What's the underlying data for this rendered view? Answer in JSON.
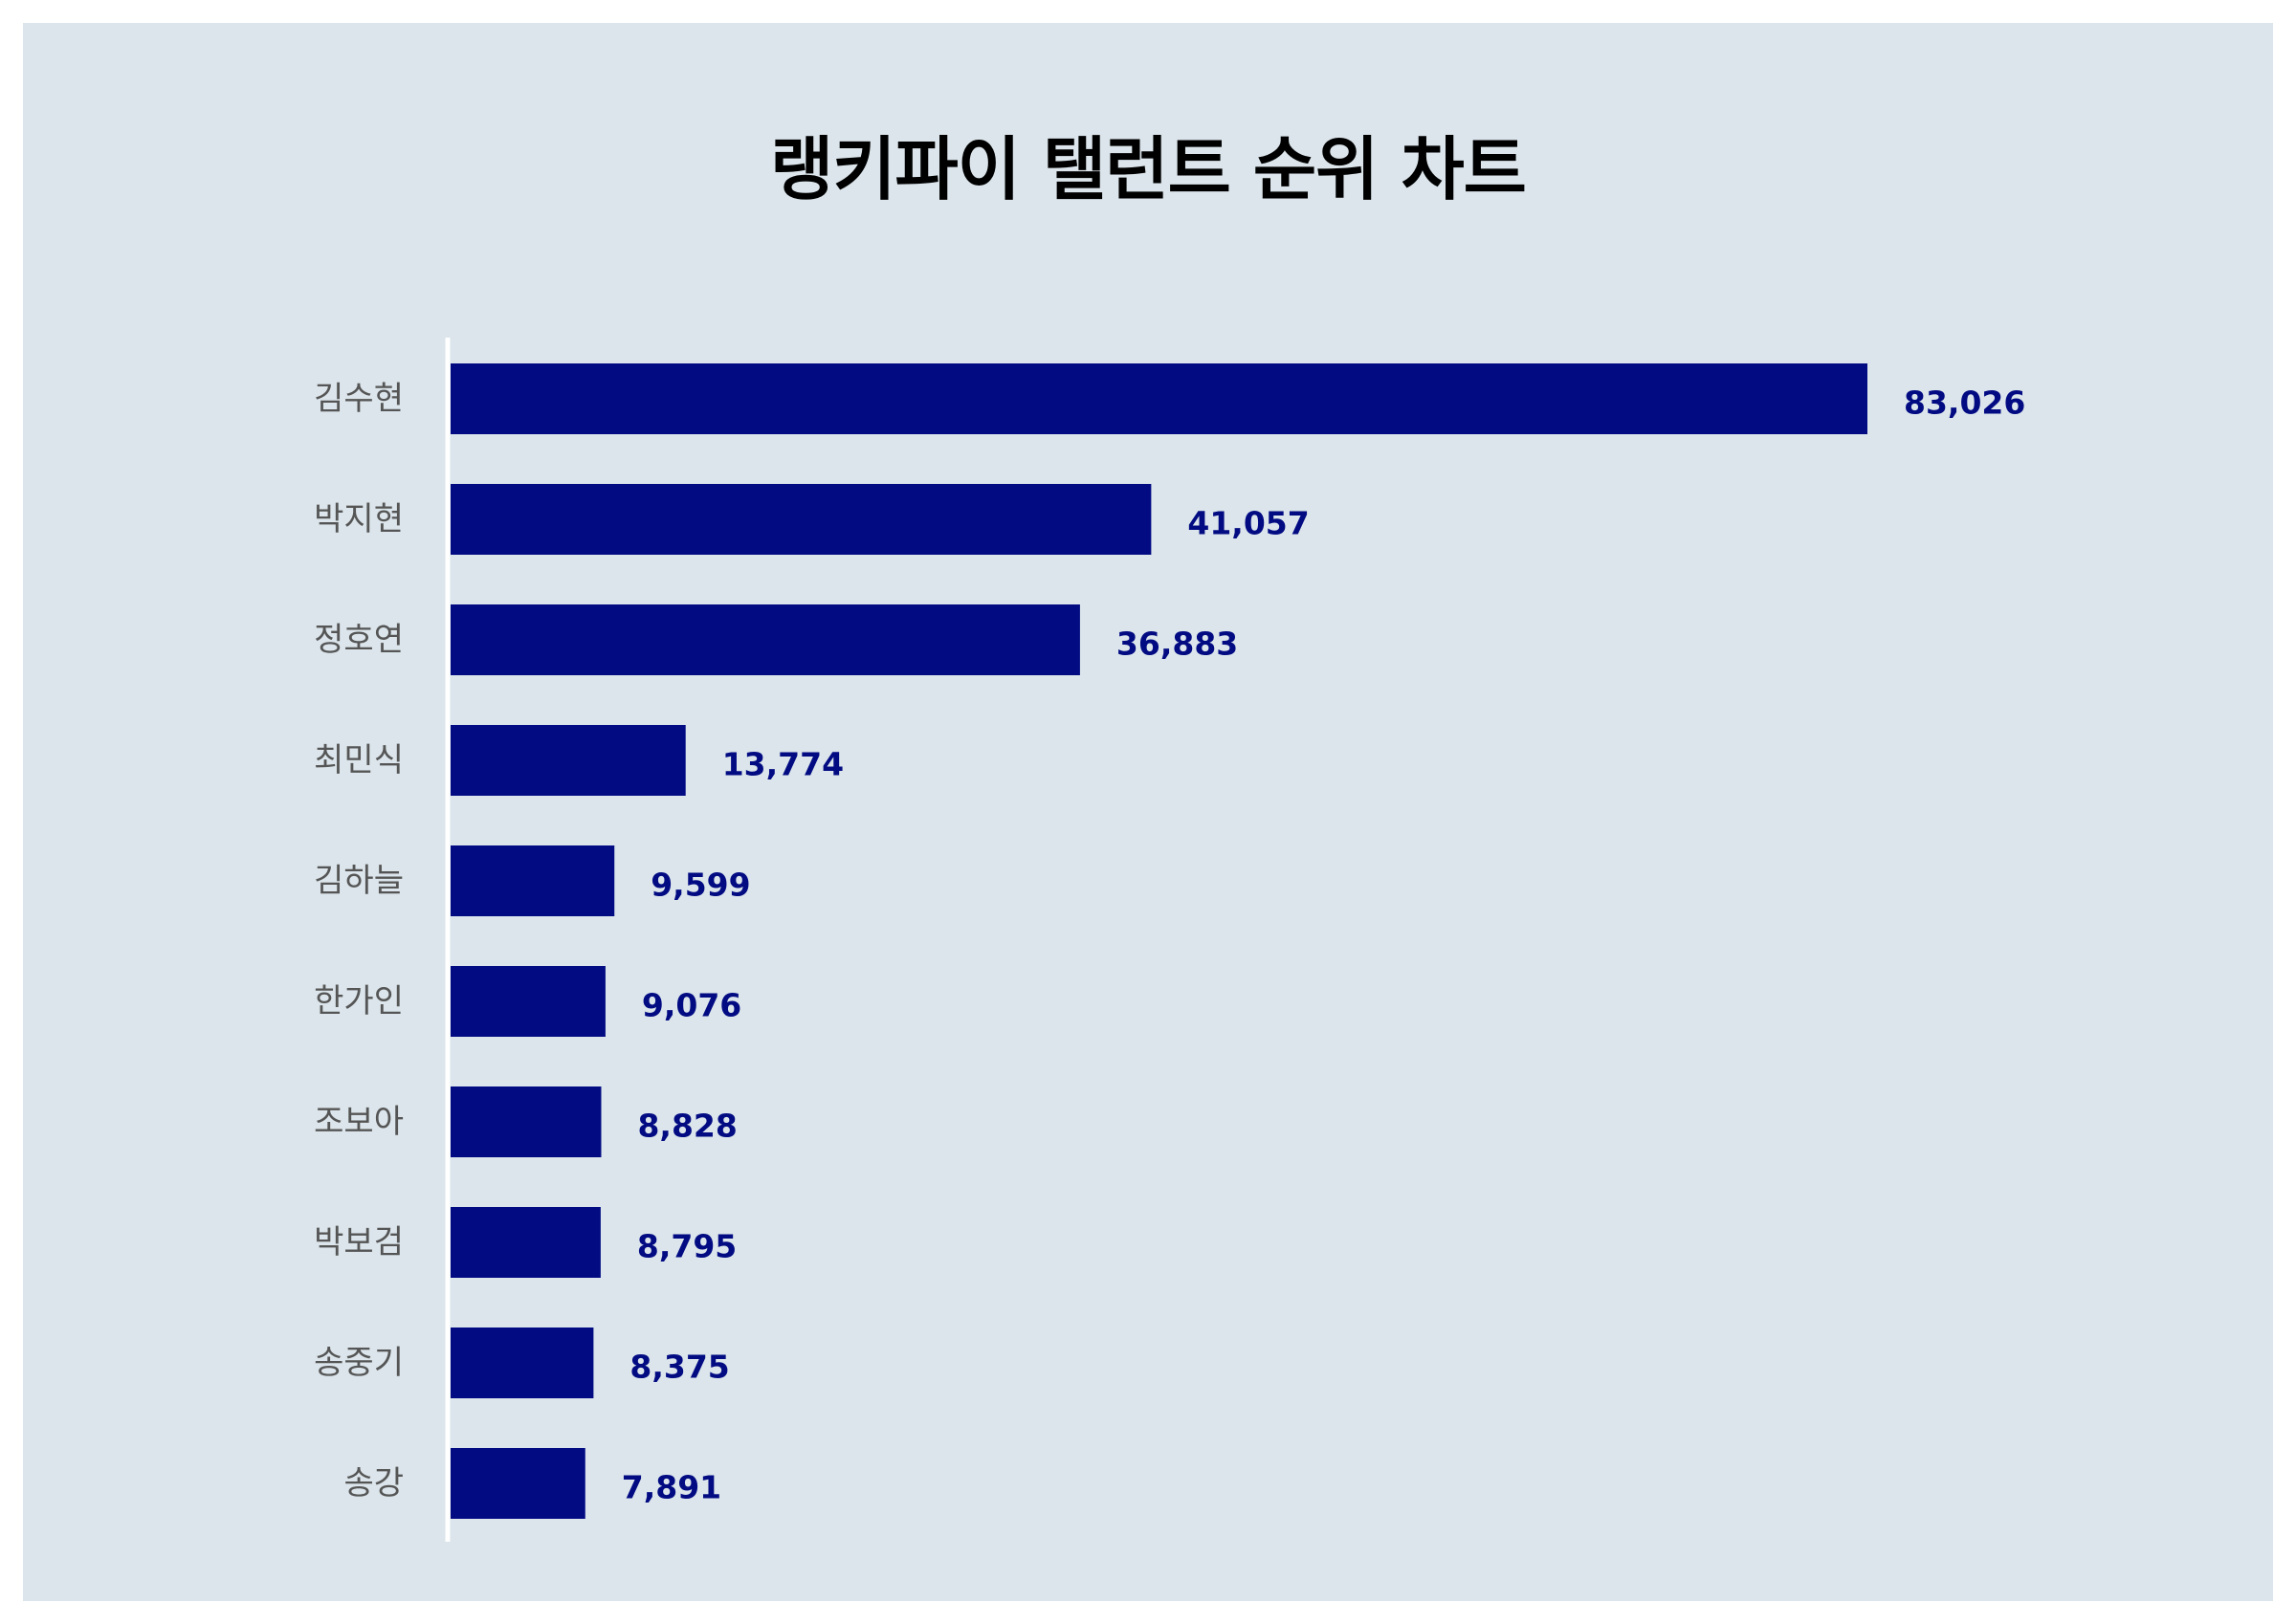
{
  "chart_data": {
    "type": "bar",
    "orientation": "horizontal",
    "title": "랭키파이 탤런트 순위 차트",
    "categories": [
      "김수현",
      "박지현",
      "정호연",
      "최민식",
      "김하늘",
      "한가인",
      "조보아",
      "박보검",
      "송중기",
      "송강"
    ],
    "values": [
      83026,
      41057,
      36883,
      13774,
      9599,
      9076,
      8828,
      8795,
      8375,
      7891
    ],
    "value_labels": [
      "83,026",
      "41,057",
      "36,883",
      "13,774",
      "9,599",
      "9,076",
      "8,828",
      "8,795",
      "8,375",
      "7,891"
    ],
    "xlim": [
      0,
      83026
    ],
    "grid": false,
    "legend": "none",
    "bar_color": "#020b82",
    "label_color": "#020b82",
    "category_color": "#555555",
    "background_color": "#dbe5eb",
    "axis_line_color": "#ffffff"
  }
}
